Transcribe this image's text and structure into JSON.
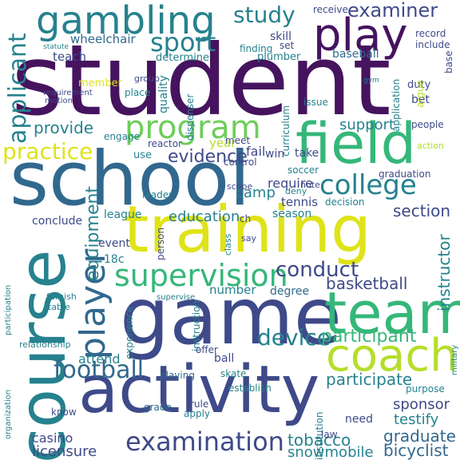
{
  "palette": {
    "dark_purple": "#46135f",
    "indigo": "#3e4a89",
    "blue": "#31688e",
    "teal": "#26828e",
    "green": "#35b779",
    "light_green": "#6ece58",
    "lime": "#b5de2b",
    "yellow": "#dfe318"
  },
  "words": [
    {
      "text": "student",
      "color": "dark_purple"
    },
    {
      "text": "school",
      "color": "blue"
    },
    {
      "text": "training",
      "color": "yellow"
    },
    {
      "text": "game",
      "color": "indigo"
    },
    {
      "text": "activity",
      "color": "indigo"
    },
    {
      "text": "course",
      "color": "teal"
    },
    {
      "text": "team",
      "color": "green"
    },
    {
      "text": "field",
      "color": "green"
    },
    {
      "text": "coach",
      "color": "lime"
    },
    {
      "text": "gambling",
      "color": "teal"
    },
    {
      "text": "play",
      "color": "dark_purple"
    },
    {
      "text": "program",
      "color": "light_green"
    },
    {
      "text": "supervision",
      "color": "green"
    },
    {
      "text": "player",
      "color": "blue"
    },
    {
      "text": "examination",
      "color": "indigo"
    },
    {
      "text": "college",
      "color": "teal"
    },
    {
      "text": "device",
      "color": "teal"
    },
    {
      "text": "football",
      "color": "blue"
    },
    {
      "text": "sport",
      "color": "teal"
    },
    {
      "text": "study",
      "color": "teal"
    },
    {
      "text": "examiner",
      "color": "indigo"
    },
    {
      "text": "applicant",
      "color": "teal"
    },
    {
      "text": "practice",
      "color": "yellow"
    },
    {
      "text": "conduct",
      "color": "indigo"
    },
    {
      "text": "evidence",
      "color": "indigo"
    },
    {
      "text": "participant",
      "color": "green"
    },
    {
      "text": "participate",
      "color": "teal"
    },
    {
      "text": "graduate",
      "color": "blue"
    },
    {
      "text": "bicyclist",
      "color": "blue"
    },
    {
      "text": "licensure",
      "color": "indigo"
    },
    {
      "text": "tobacco",
      "color": "teal"
    },
    {
      "text": "snowmobile",
      "color": "teal"
    },
    {
      "text": "equipment",
      "color": "teal"
    },
    {
      "text": "instructor",
      "color": "teal"
    },
    {
      "text": "section",
      "color": "indigo"
    },
    {
      "text": "basketball",
      "color": "indigo"
    },
    {
      "text": "education",
      "color": "teal"
    },
    {
      "text": "provide",
      "color": "teal"
    },
    {
      "text": "support",
      "color": "teal"
    },
    {
      "text": "sponsor",
      "color": "indigo"
    },
    {
      "text": "testify",
      "color": "teal"
    },
    {
      "text": "wheelchair",
      "color": "blue"
    },
    {
      "text": "teach",
      "color": "indigo"
    },
    {
      "text": "determine",
      "color": "teal"
    },
    {
      "text": "skill",
      "color": "indigo"
    },
    {
      "text": "baseball",
      "color": "blue"
    },
    {
      "text": "league",
      "color": "teal"
    },
    {
      "text": "camp",
      "color": "teal"
    },
    {
      "text": "ball",
      "color": "indigo"
    },
    {
      "text": "attend",
      "color": "teal"
    },
    {
      "text": "casino",
      "color": "indigo"
    },
    {
      "text": "number",
      "color": "teal"
    },
    {
      "text": "degree",
      "color": "blue"
    },
    {
      "text": "tennis",
      "color": "indigo"
    },
    {
      "text": "season",
      "color": "teal"
    },
    {
      "text": "require",
      "color": "indigo"
    },
    {
      "text": "fail",
      "color": "indigo"
    },
    {
      "text": "18c",
      "color": "teal"
    },
    {
      "text": "conclude",
      "color": "indigo"
    },
    {
      "text": "event",
      "color": "indigo"
    },
    {
      "text": "year",
      "color": "lime"
    },
    {
      "text": "quality",
      "color": "teal"
    },
    {
      "text": "curriculum",
      "color": "teal"
    },
    {
      "text": "dispenser",
      "color": "teal"
    },
    {
      "text": "finding",
      "color": "teal"
    },
    {
      "text": "plumber",
      "color": "teal"
    },
    {
      "text": "bet",
      "color": "indigo"
    },
    {
      "text": "duty",
      "color": "indigo"
    },
    {
      "text": "issue",
      "color": "teal"
    },
    {
      "text": "win",
      "color": "indigo"
    },
    {
      "text": "take",
      "color": "indigo"
    },
    {
      "text": "meet",
      "color": "indigo"
    },
    {
      "text": "use",
      "color": "teal"
    },
    {
      "text": "soccer",
      "color": "teal"
    },
    {
      "text": "graduation",
      "color": "indigo"
    },
    {
      "text": "decision",
      "color": "teal"
    },
    {
      "text": "need",
      "color": "indigo"
    },
    {
      "text": "grade",
      "color": "blue"
    },
    {
      "text": "rule",
      "color": "indigo"
    },
    {
      "text": "apply",
      "color": "teal"
    },
    {
      "text": "playing",
      "color": "blue"
    },
    {
      "text": "establish",
      "color": "teal"
    },
    {
      "text": "offer",
      "color": "indigo"
    },
    {
      "text": "skate",
      "color": "teal"
    },
    {
      "text": "know",
      "color": "indigo"
    },
    {
      "text": "purpose",
      "color": "teal"
    },
    {
      "text": "leader",
      "color": "teal"
    },
    {
      "text": "control",
      "color": "indigo"
    },
    {
      "text": "person",
      "color": "indigo"
    },
    {
      "text": "experience",
      "color": "teal"
    },
    {
      "text": "instruction",
      "color": "teal"
    },
    {
      "text": "institution",
      "color": "teal"
    },
    {
      "text": "reactor",
      "color": "indigo"
    },
    {
      "text": "engage",
      "color": "teal"
    },
    {
      "text": "place",
      "color": "teal"
    },
    {
      "text": "member",
      "color": "yellow"
    },
    {
      "text": "application",
      "color": "teal"
    },
    {
      "text": "set",
      "color": "indigo"
    },
    {
      "text": "base",
      "color": "indigo"
    },
    {
      "text": "receive",
      "color": "indigo"
    },
    {
      "text": "record",
      "color": "indigo"
    },
    {
      "text": "include",
      "color": "indigo"
    },
    {
      "text": "argue",
      "color": "lime"
    },
    {
      "text": "people",
      "color": "indigo"
    },
    {
      "text": "relationship",
      "color": "teal"
    },
    {
      "text": "ch",
      "color": "indigo"
    },
    {
      "text": "law",
      "color": "indigo"
    },
    {
      "text": "scope",
      "color": "indigo"
    },
    {
      "text": "deny",
      "color": "teal"
    },
    {
      "text": "note",
      "color": "indigo"
    },
    {
      "text": "table",
      "color": "teal"
    },
    {
      "text": "furnish",
      "color": "teal"
    },
    {
      "text": "class",
      "color": "teal"
    },
    {
      "text": "say",
      "color": "indigo"
    },
    {
      "text": "action",
      "color": "lime"
    },
    {
      "text": "group",
      "color": "indigo"
    },
    {
      "text": "supervise",
      "color": "teal"
    },
    {
      "text": "organization",
      "color": "teal"
    },
    {
      "text": "participation",
      "color": "teal"
    },
    {
      "text": "military",
      "color": "teal"
    },
    {
      "text": "motion",
      "color": "indigo"
    },
    {
      "text": "requirement",
      "color": "indigo"
    },
    {
      "text": "statute",
      "color": "teal"
    },
    {
      "text": "gym",
      "color": "teal"
    }
  ]
}
